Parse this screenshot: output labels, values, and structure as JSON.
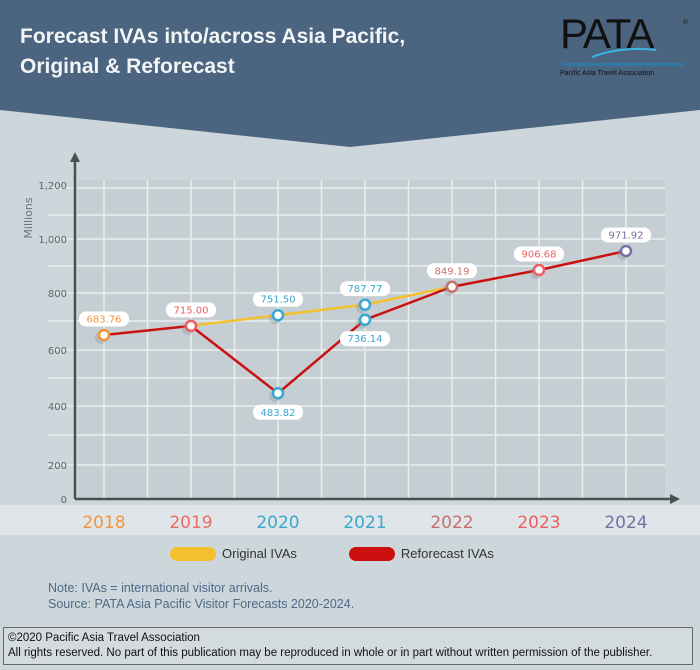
{
  "header": {
    "title_line1": "Forecast IVAs into/across Asia Pacific,",
    "title_line2": "Original & Reforecast",
    "logo_text": "PATA",
    "logo_registered": "®",
    "logo_subtitle": "Pacific Asia Travel Association"
  },
  "colors": {
    "header_bg": "#4b6580",
    "page_bg": "#cdd6da",
    "original_line": "#f5c02e",
    "reforecast_line": "#cc1010"
  },
  "chart_data": {
    "type": "line",
    "title": "Forecast IVAs into/across Asia Pacific, Original & Reforecast",
    "xlabel": "",
    "ylabel": "Millions",
    "ylim": [
      0,
      1200
    ],
    "yticks": [
      "0",
      "200",
      "400",
      "600",
      "800",
      "1,000",
      "1,200"
    ],
    "categories": [
      "2018",
      "2019",
      "2020",
      "2021",
      "2022",
      "2023",
      "2024"
    ],
    "category_colors": [
      "#f5953a",
      "#ee6a62",
      "#3aa7cf",
      "#3aa7cf",
      "#c46f6b",
      "#ee5e5e",
      "#7a6fa3"
    ],
    "grid": true,
    "legend_position": "bottom",
    "series": [
      {
        "name": "Original IVAs",
        "color": "#f5c02e",
        "values": [
          null,
          715.0,
          751.5,
          787.77,
          849.19,
          null,
          null
        ]
      },
      {
        "name": "Reforecast IVAs",
        "color": "#cc1010",
        "values": [
          683.76,
          715.0,
          483.82,
          736.14,
          849.19,
          906.68,
          971.92
        ]
      }
    ],
    "data_labels": [
      {
        "year": "2018",
        "value": 683.76,
        "text": "683.76",
        "position": "above",
        "color": "#f5953a"
      },
      {
        "year": "2019",
        "value": 715.0,
        "text": "715.00",
        "position": "above",
        "color": "#ee5e5e"
      },
      {
        "year": "2020",
        "value": 751.5,
        "text": "751.50",
        "position": "above",
        "color": "#3aa7cf"
      },
      {
        "year": "2020",
        "value": 483.82,
        "text": "483.82",
        "position": "below",
        "color": "#3aa7cf"
      },
      {
        "year": "2021",
        "value": 787.77,
        "text": "787.77",
        "position": "above",
        "color": "#3aa7cf"
      },
      {
        "year": "2021",
        "value": 736.14,
        "text": "736.14",
        "position": "below",
        "color": "#3aa7cf"
      },
      {
        "year": "2022",
        "value": 849.19,
        "text": "849.19",
        "position": "above",
        "color": "#c46f6b"
      },
      {
        "year": "2023",
        "value": 906.68,
        "text": "906.68",
        "position": "above",
        "color": "#ee5e5e"
      },
      {
        "year": "2024",
        "value": 971.92,
        "text": "971.92",
        "position": "above",
        "color": "#7a6fa3"
      }
    ]
  },
  "legend": {
    "original_label": "Original IVAs",
    "reforecast_label": "Reforecast IVAs"
  },
  "notes": {
    "note": "Note: IVAs = international visitor arrivals.",
    "source": "Source: PATA Asia Pacific Visitor Forecasts 2020-2024."
  },
  "footer": {
    "copyright": "©2020 Pacific Asia Travel Association",
    "rights": "All rights reserved. No part of this publication may be reproduced in whole or in part without written permission of the publisher."
  }
}
